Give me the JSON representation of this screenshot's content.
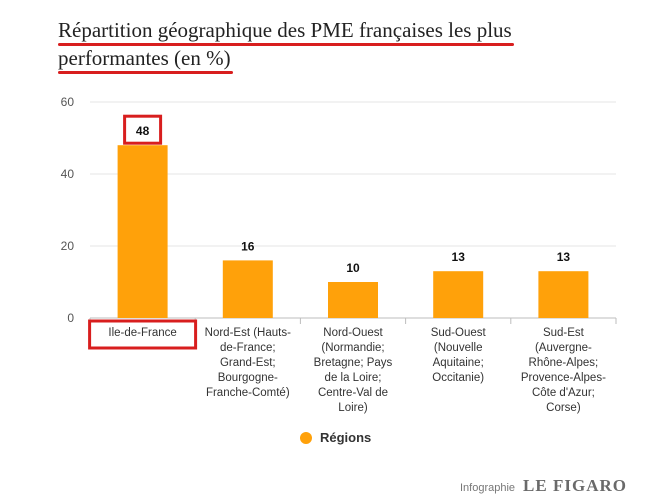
{
  "chart_data": {
    "type": "bar",
    "title_lines": [
      "Répartition géographique des PME françaises les plus",
      "performantes (en %)"
    ],
    "categories": [
      [
        "Ile-de-France"
      ],
      [
        "Nord-Est (Hauts-",
        "de-France;",
        "Grand-Est;",
        "Bourgogne-",
        "Franche-Comté)"
      ],
      [
        "Nord-Ouest",
        "(Normandie;",
        "Bretagne; Pays",
        "de la Loire;",
        "Centre-Val de",
        "Loire)"
      ],
      [
        "Sud-Ouest",
        "(Nouvelle",
        "Aquitaine;",
        "Occitanie)"
      ],
      [
        "Sud-Est",
        "(Auvergne-",
        "Rhône-Alpes;",
        "Provence-Alpes-",
        "Côte d'Azur;",
        "Corse)"
      ]
    ],
    "series": [
      {
        "name": "Régions",
        "values": [
          48,
          16,
          10,
          13,
          13
        ],
        "color": "#ffa10a"
      }
    ],
    "ylim": [
      0,
      60
    ],
    "yticks": [
      0,
      20,
      40,
      60
    ],
    "xlabel": "",
    "ylabel": "",
    "grid": true,
    "legend_position": "bottom-center",
    "highlighted_index": 0,
    "highlight_color": "#d81e1e"
  },
  "credit": {
    "label": "Infographie",
    "logo": "LE FIGARO"
  }
}
